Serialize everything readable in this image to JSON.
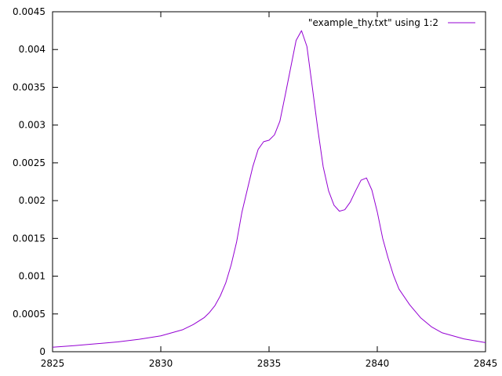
{
  "chart_data": {
    "type": "line",
    "title": "",
    "xlabel": "",
    "ylabel": "",
    "xlim": [
      2825,
      2845
    ],
    "ylim": [
      0,
      0.0045
    ],
    "grid": false,
    "legend_position": "top-right",
    "x_ticks": [
      {
        "value": 2825,
        "label": "2825"
      },
      {
        "value": 2830,
        "label": "2830"
      },
      {
        "value": 2835,
        "label": "2835"
      },
      {
        "value": 2840,
        "label": "2840"
      },
      {
        "value": 2845,
        "label": "2845"
      }
    ],
    "y_ticks": [
      {
        "value": 0,
        "label": "0"
      },
      {
        "value": 0.0005,
        "label": "0.0005"
      },
      {
        "value": 0.001,
        "label": "0.001"
      },
      {
        "value": 0.0015,
        "label": "0.0015"
      },
      {
        "value": 0.002,
        "label": "0.002"
      },
      {
        "value": 0.0025,
        "label": "0.0025"
      },
      {
        "value": 0.003,
        "label": "0.003"
      },
      {
        "value": 0.0035,
        "label": "0.0035"
      },
      {
        "value": 0.004,
        "label": "0.004"
      },
      {
        "value": 0.0045,
        "label": "0.0045"
      }
    ],
    "series": [
      {
        "name": "\"example_thy.txt\" using 1:2",
        "color": "#9400d3",
        "x": [
          2825,
          2826,
          2827,
          2828,
          2829,
          2830,
          2830.5,
          2831,
          2831.5,
          2832,
          2832.25,
          2832.5,
          2832.75,
          2833,
          2833.25,
          2833.5,
          2833.75,
          2834,
          2834.25,
          2834.5,
          2834.75,
          2835,
          2835.25,
          2835.5,
          2835.75,
          2836,
          2836.25,
          2836.5,
          2836.75,
          2837,
          2837.25,
          2837.5,
          2837.75,
          2838,
          2838.25,
          2838.5,
          2838.75,
          2839,
          2839.25,
          2839.5,
          2839.75,
          2840,
          2840.25,
          2840.5,
          2840.75,
          2841,
          2841.5,
          2842,
          2842.5,
          2843,
          2844,
          2845
        ],
        "y": [
          6e-05,
          8e-05,
          0.000105,
          0.00013,
          0.000165,
          0.00021,
          0.00025,
          0.00029,
          0.00036,
          0.00045,
          0.00052,
          0.00061,
          0.00074,
          0.00091,
          0.00115,
          0.00145,
          0.00185,
          0.00215,
          0.00245,
          0.00268,
          0.00278,
          0.0028,
          0.00287,
          0.00305,
          0.0034,
          0.00376,
          0.00412,
          0.00425,
          0.00404,
          0.0035,
          0.00295,
          0.00245,
          0.00213,
          0.00194,
          0.00186,
          0.00188,
          0.00198,
          0.00213,
          0.00227,
          0.0023,
          0.00214,
          0.00185,
          0.0015,
          0.00124,
          0.00101,
          0.00083,
          0.00062,
          0.00045,
          0.00033,
          0.00025,
          0.00017,
          0.00012
        ]
      }
    ]
  }
}
